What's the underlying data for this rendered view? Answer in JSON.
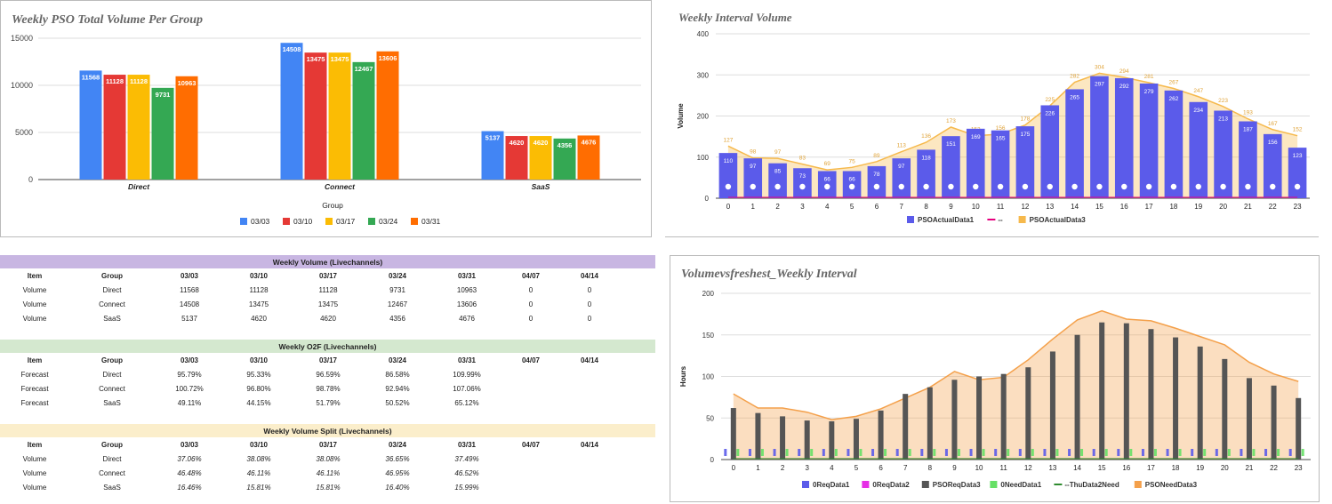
{
  "chart_data": [
    {
      "type": "bar",
      "title": "Weekly PSO Total Volume Per Group",
      "xlabel": "Group",
      "ylabel": "",
      "ylim": [
        0,
        15000
      ],
      "yticks": [
        0,
        5000,
        10000,
        15000
      ],
      "categories": [
        "Direct",
        "Connect",
        "SaaS"
      ],
      "legend_position": "bottom",
      "series": [
        {
          "name": "03/03",
          "color": "#4285f4",
          "values": [
            11568,
            14508,
            5137
          ]
        },
        {
          "name": "03/10",
          "color": "#e53935",
          "values": [
            11128,
            13475,
            4620
          ]
        },
        {
          "name": "03/17",
          "color": "#fbbc04",
          "values": [
            11128,
            13475,
            4620
          ]
        },
        {
          "name": "03/24",
          "color": "#34a853",
          "values": [
            9731,
            12467,
            4356
          ]
        },
        {
          "name": "03/31",
          "color": "#ff6d01",
          "values": [
            10963,
            13606,
            4676
          ]
        }
      ]
    },
    {
      "type": "bar",
      "title": "Weekly Interval Volume",
      "xlabel": "",
      "ylabel": "Volume",
      "ylim": [
        0,
        400
      ],
      "yticks": [
        0,
        100,
        200,
        300,
        400
      ],
      "x": [
        0,
        1,
        2,
        3,
        4,
        5,
        6,
        7,
        8,
        9,
        10,
        11,
        12,
        13,
        14,
        15,
        16,
        17,
        18,
        19,
        20,
        21,
        22,
        23
      ],
      "legend_position": "bottom",
      "series": [
        {
          "name": "PSOActualData1",
          "kind": "bar",
          "color": "#5b5bea",
          "values": [
            110,
            97,
            85,
            73,
            66,
            66,
            78,
            97,
            118,
            151,
            169,
            165,
            175,
            226,
            265,
            297,
            292,
            279,
            262,
            234,
            213,
            187,
            156,
            123
          ]
        },
        {
          "name": "--",
          "kind": "line",
          "color": "#e6007e",
          "values": [
            0,
            0,
            0,
            0,
            0,
            0,
            0,
            0,
            0,
            0,
            0,
            0,
            0,
            0,
            0,
            0,
            0,
            0,
            0,
            0,
            0,
            0,
            0,
            0
          ]
        },
        {
          "name": "PSOActualData3",
          "kind": "area",
          "color": "#f6b94c",
          "values": [
            127,
            98,
            97,
            83,
            69,
            75,
            89,
            113,
            136,
            173,
            152,
            156,
            178,
            225,
            282,
            304,
            294,
            281,
            267,
            247,
            223,
            193,
            167,
            152
          ]
        }
      ]
    },
    {
      "type": "table",
      "sections": [
        {
          "title": "Weekly Volume (Livechannels)",
          "color": "#c8b6e2",
          "columns": [
            "Item",
            "Group",
            "03/03",
            "03/10",
            "03/17",
            "03/24",
            "03/31",
            "04/07",
            "04/14"
          ],
          "italic": false,
          "rows": [
            [
              "Volume",
              "Direct",
              "11568",
              "11128",
              "11128",
              "9731",
              "10963",
              "0",
              "0"
            ],
            [
              "Volume",
              "Connect",
              "14508",
              "13475",
              "13475",
              "12467",
              "13606",
              "0",
              "0"
            ],
            [
              "Volume",
              "SaaS",
              "5137",
              "4620",
              "4620",
              "4356",
              "4676",
              "0",
              "0"
            ]
          ]
        },
        {
          "title": "Weekly O2F (Livechannels)",
          "color": "#d4e8cf",
          "columns": [
            "Item",
            "Group",
            "03/03",
            "03/10",
            "03/17",
            "03/24",
            "03/31",
            "04/07",
            "04/14"
          ],
          "italic": false,
          "rows": [
            [
              "Forecast",
              "Direct",
              "95.79%",
              "95.33%",
              "96.59%",
              "86.58%",
              "109.99%",
              "",
              ""
            ],
            [
              "Forecast",
              "Connect",
              "100.72%",
              "96.80%",
              "98.78%",
              "92.94%",
              "107.06%",
              "",
              ""
            ],
            [
              "Forecast",
              "SaaS",
              "49.11%",
              "44.15%",
              "51.79%",
              "50.52%",
              "65.12%",
              "",
              ""
            ]
          ]
        },
        {
          "title": "Weekly Volume Split (Livechannels)",
          "color": "#fbeecb",
          "columns": [
            "Item",
            "Group",
            "03/03",
            "03/10",
            "03/17",
            "03/24",
            "03/31",
            "04/07",
            "04/14"
          ],
          "italic": true,
          "rows": [
            [
              "Volume",
              "Direct",
              "37.06%",
              "38.08%",
              "38.08%",
              "36.65%",
              "37.49%",
              "",
              ""
            ],
            [
              "Volume",
              "Connect",
              "46.48%",
              "46.11%",
              "46.11%",
              "46.95%",
              "46.52%",
              "",
              ""
            ],
            [
              "Volume",
              "SaaS",
              "16.46%",
              "15.81%",
              "15.81%",
              "16.40%",
              "15.99%",
              "",
              ""
            ]
          ]
        }
      ]
    },
    {
      "type": "bar",
      "title": "Volumevsfreshest_Weekly Interval",
      "xlabel": "",
      "ylabel": "Hours",
      "ylim": [
        0,
        200
      ],
      "yticks": [
        0,
        50,
        100,
        150,
        200
      ],
      "x": [
        0,
        1,
        2,
        3,
        4,
        5,
        6,
        7,
        8,
        9,
        10,
        11,
        12,
        13,
        14,
        15,
        16,
        17,
        18,
        19,
        20,
        21,
        22,
        23
      ],
      "legend_position": "bottom",
      "series": [
        {
          "name": "0ReqData1",
          "kind": "bar",
          "color": "#5b5bea",
          "values": [
            0,
            0,
            0,
            0,
            0,
            0,
            0,
            0,
            0,
            0,
            0,
            0,
            0,
            0,
            0,
            0,
            0,
            0,
            0,
            0,
            0,
            0,
            0,
            0
          ]
        },
        {
          "name": "0ReqData2",
          "kind": "bar",
          "color": "#e62ee6",
          "values": [
            0,
            0,
            0,
            0,
            0,
            0,
            0,
            0,
            0,
            0,
            0,
            0,
            0,
            0,
            0,
            0,
            0,
            0,
            0,
            0,
            0,
            0,
            0,
            0
          ]
        },
        {
          "name": "PSOReqData3",
          "kind": "bar",
          "color": "#555555",
          "values": [
            62,
            56,
            52,
            47,
            46,
            49,
            59,
            79,
            87,
            96,
            100,
            103,
            111,
            130,
            150,
            165,
            164,
            157,
            147,
            136,
            121,
            98,
            89,
            74
          ]
        },
        {
          "name": "0NeedData1",
          "kind": "bar",
          "color": "#66e066",
          "values": [
            0,
            0,
            0,
            0,
            0,
            0,
            0,
            0,
            0,
            0,
            0,
            0,
            0,
            0,
            0,
            0,
            0,
            0,
            0,
            0,
            0,
            0,
            0,
            0
          ]
        },
        {
          "name": "--ThuData2Need",
          "kind": "line",
          "color": "#2e8b2e",
          "values": [
            0,
            0,
            0,
            0,
            0,
            0,
            0,
            0,
            0,
            0,
            0,
            0,
            0,
            0,
            0,
            0,
            0,
            0,
            0,
            0,
            0,
            0,
            0,
            0
          ]
        },
        {
          "name": "PSONeedData3",
          "kind": "area",
          "color": "#f4a04a",
          "values": [
            79,
            62,
            62,
            57,
            48,
            52,
            61,
            74,
            87,
            106,
            96,
            99,
            120,
            145,
            168,
            179,
            169,
            167,
            158,
            148,
            138,
            117,
            103,
            94
          ]
        }
      ]
    }
  ]
}
